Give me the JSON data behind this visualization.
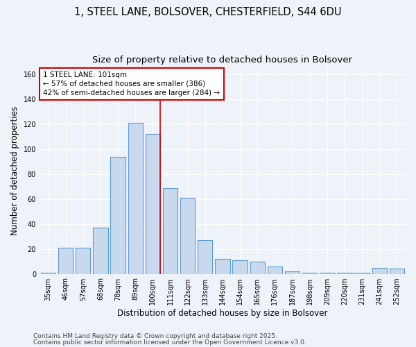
{
  "title": "1, STEEL LANE, BOLSOVER, CHESTERFIELD, S44 6DU",
  "subtitle": "Size of property relative to detached houses in Bolsover",
  "xlabel": "Distribution of detached houses by size in Bolsover",
  "ylabel": "Number of detached properties",
  "categories": [
    "35sqm",
    "46sqm",
    "57sqm",
    "68sqm",
    "78sqm",
    "89sqm",
    "100sqm",
    "111sqm",
    "122sqm",
    "133sqm",
    "144sqm",
    "154sqm",
    "165sqm",
    "176sqm",
    "187sqm",
    "198sqm",
    "209sqm",
    "220sqm",
    "231sqm",
    "241sqm",
    "252sqm"
  ],
  "values": [
    1,
    21,
    21,
    37,
    94,
    121,
    112,
    69,
    61,
    27,
    12,
    11,
    10,
    6,
    2,
    1,
    1,
    1,
    1,
    5,
    4
  ],
  "bar_color": "#c9d9ed",
  "bar_edge_color": "#5b9bd5",
  "red_line_color": "#cc0000",
  "annotation_text": "1 STEEL LANE: 101sqm\n← 57% of detached houses are smaller (386)\n42% of semi-detached houses are larger (284) →",
  "annotation_box_facecolor": "#ffffff",
  "annotation_box_edgecolor": "#cc0000",
  "ylim": [
    0,
    165
  ],
  "yticks": [
    0,
    20,
    40,
    60,
    80,
    100,
    120,
    140,
    160
  ],
  "footer_line1": "Contains HM Land Registry data © Crown copyright and database right 2025.",
  "footer_line2": "Contains public sector information licensed under the Open Government Licence v3.0.",
  "background_color": "#eef2f9",
  "axes_background_color": "#eef2f9",
  "title_fontsize": 10.5,
  "subtitle_fontsize": 9.5,
  "axis_label_fontsize": 8.5,
  "tick_fontsize": 7,
  "annotation_fontsize": 7.5,
  "footer_fontsize": 6.5,
  "grid_color": "#ffffff",
  "red_line_bar_index": 6
}
